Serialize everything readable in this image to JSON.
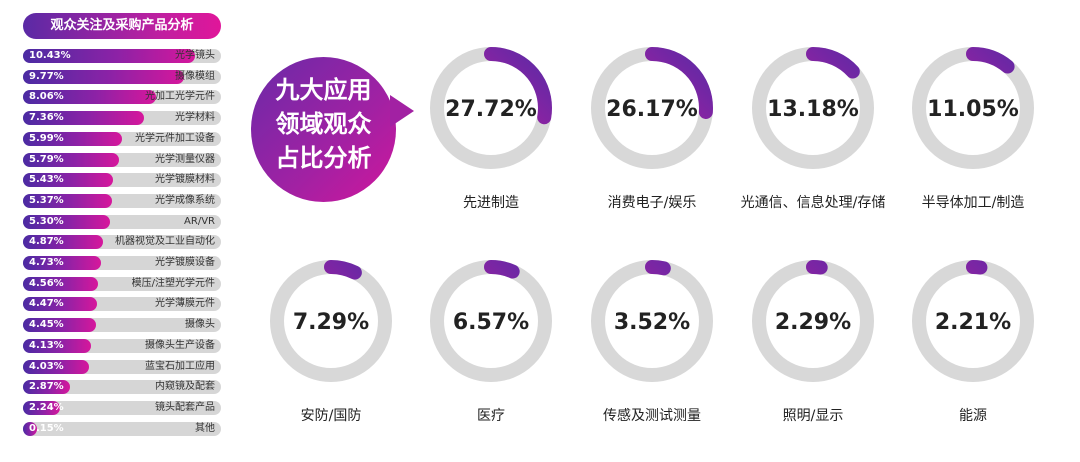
{
  "colors": {
    "track": "#d8d8d8",
    "accent_start": "#5b2aa6",
    "accent_end": "#e0179b"
  },
  "panel_left": {
    "title": "观众关注及采购产品分析"
  },
  "panel_right": {
    "title_lines": [
      "九大应用",
      "领域观众",
      "占比分析"
    ]
  },
  "chart_data": [
    {
      "type": "bar",
      "orientation": "horizontal",
      "title": "观众关注及采购产品分析",
      "categories": [
        "光学镜头",
        "摄像模组",
        "光加工光学元件",
        "光学材料",
        "光学元件加工设备",
        "光学测量仪器",
        "光学镀膜材料",
        "光学成像系统",
        "AR/VR",
        "机器视觉及工业自动化",
        "光学镀膜设备",
        "模压/注塑光学元件",
        "光学薄膜元件",
        "摄像头",
        "摄像头生产设备",
        "蓝宝石加工应用",
        "内窥镜及配套",
        "镜头配套产品",
        "其他"
      ],
      "values": [
        10.43,
        9.77,
        8.06,
        7.36,
        5.99,
        5.79,
        5.43,
        5.37,
        5.3,
        4.87,
        4.73,
        4.56,
        4.47,
        4.45,
        4.13,
        4.03,
        2.87,
        2.24,
        0.15
      ],
      "value_labels": [
        "10.43%",
        "9.77%",
        "8.06%",
        "7.36%",
        "5.99%",
        "5.79%",
        "5.43%",
        "5.37%",
        "5.30%",
        "4.87%",
        "4.73%",
        "4.56%",
        "4.47%",
        "4.45%",
        "4.13%",
        "4.03%",
        "2.87%",
        "2.24%",
        "0.15%"
      ],
      "xlim": [
        0,
        12
      ]
    },
    {
      "type": "pie",
      "variant": "donut",
      "title": "九大应用领域观众占比分析",
      "categories": [
        "先进制造",
        "消费电子/娱乐",
        "光通信、信息处理/存储",
        "半导体加工/制造",
        "安防/国防",
        "医疗",
        "传感及测试测量",
        "照明/显示",
        "能源"
      ],
      "values": [
        27.72,
        26.17,
        13.18,
        11.05,
        7.29,
        6.57,
        3.52,
        2.29,
        2.21
      ],
      "value_labels": [
        "27.72%",
        "26.17%",
        "13.18%",
        "11.05%",
        "7.29%",
        "6.57%",
        "3.52%",
        "2.29%",
        "2.21%"
      ]
    }
  ]
}
